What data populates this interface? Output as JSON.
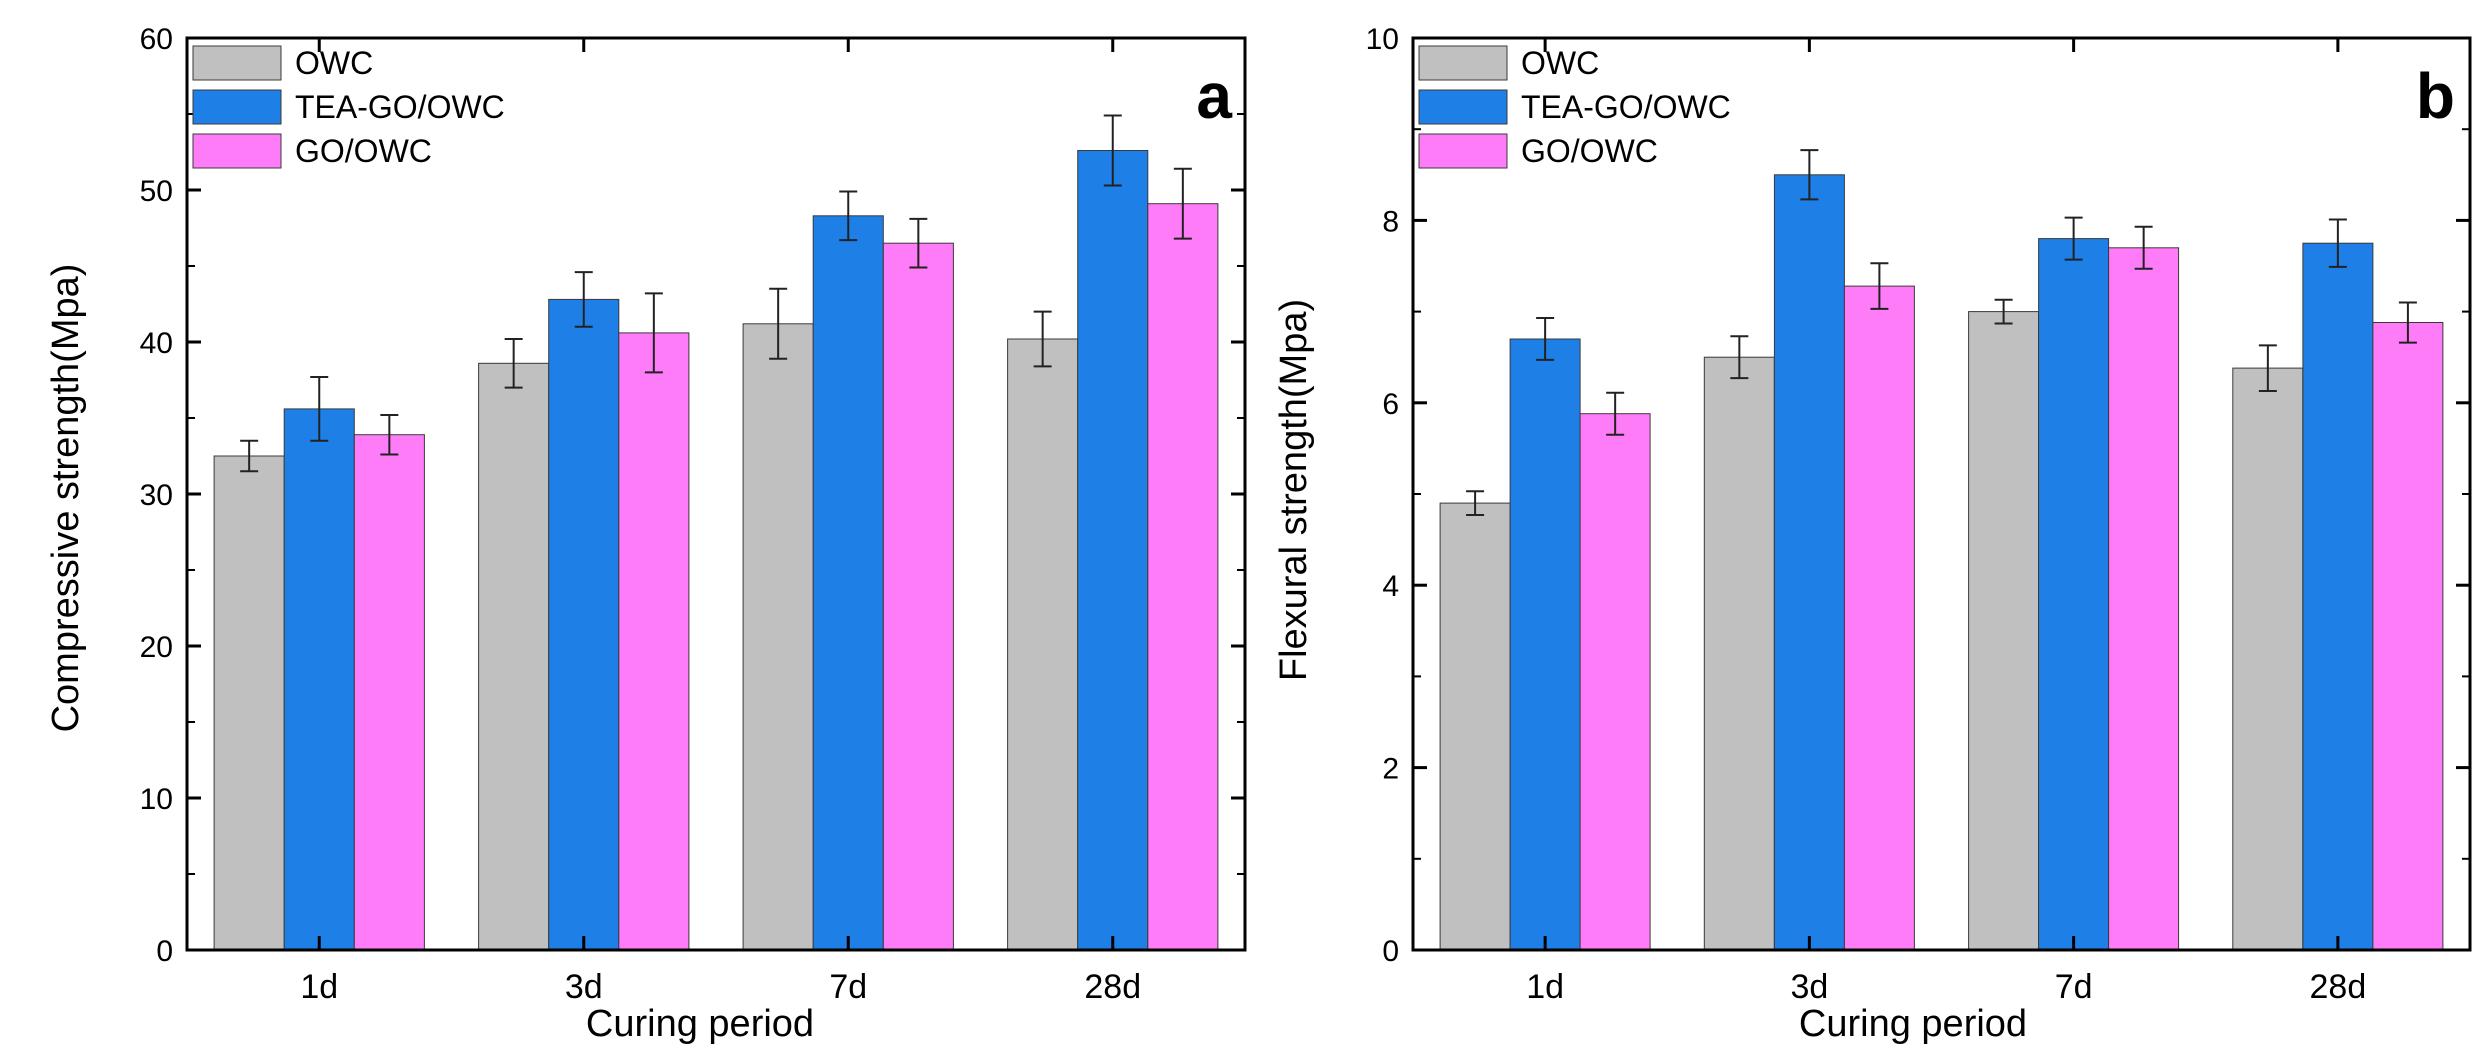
{
  "colors": {
    "OWC": "#c0c0c0",
    "TEA-GO/OWC": "#1e7fe6",
    "GO/OWC": "#ff7cf8",
    "axis": "#000000",
    "bar_edge": "#3a3a3a"
  },
  "chart_data": [
    {
      "type": "bar",
      "panel": "a",
      "xlabel": "Curing period",
      "ylabel": "Compressive strength(Mpa)",
      "ylim": [
        0,
        60
      ],
      "yticks": [
        0,
        10,
        20,
        30,
        40,
        50,
        60
      ],
      "ytick_labels": [
        "0",
        "10",
        "20",
        "30",
        "40",
        "50",
        "60"
      ],
      "categories": [
        "1d",
        "3d",
        "7d",
        "28d"
      ],
      "legend_position": "top-left",
      "series": [
        {
          "name": "OWC",
          "values": [
            32.5,
            38.6,
            41.2,
            40.2
          ],
          "errors": [
            1.0,
            1.6,
            2.3,
            1.8
          ]
        },
        {
          "name": "TEA-GO/OWC",
          "values": [
            35.6,
            42.8,
            48.3,
            52.6
          ],
          "errors": [
            2.1,
            1.8,
            1.6,
            2.3
          ]
        },
        {
          "name": "GO/OWC",
          "values": [
            33.9,
            40.6,
            46.5,
            49.1
          ],
          "errors": [
            1.3,
            2.6,
            1.6,
            2.3
          ]
        }
      ]
    },
    {
      "type": "bar",
      "panel": "b",
      "xlabel": "Curing period",
      "ylabel": "Flexural strength(Mpa)",
      "ylim": [
        0,
        10
      ],
      "yticks": [
        0,
        2,
        4,
        6,
        8,
        10
      ],
      "ytick_labels": [
        "0",
        "2",
        "4",
        "6",
        "8",
        "10"
      ],
      "categories": [
        "1d",
        "3d",
        "7d",
        "28d"
      ],
      "legend_position": "top-left",
      "series": [
        {
          "name": "OWC",
          "values": [
            4.9,
            6.5,
            7.0,
            6.38
          ],
          "errors": [
            0.13,
            0.23,
            0.13,
            0.25
          ]
        },
        {
          "name": "TEA-GO/OWC",
          "values": [
            6.7,
            8.5,
            7.8,
            7.75
          ],
          "errors": [
            0.23,
            0.27,
            0.23,
            0.26
          ]
        },
        {
          "name": "GO/OWC",
          "values": [
            5.88,
            7.28,
            7.7,
            6.88
          ],
          "errors": [
            0.23,
            0.25,
            0.23,
            0.22
          ]
        }
      ]
    }
  ]
}
